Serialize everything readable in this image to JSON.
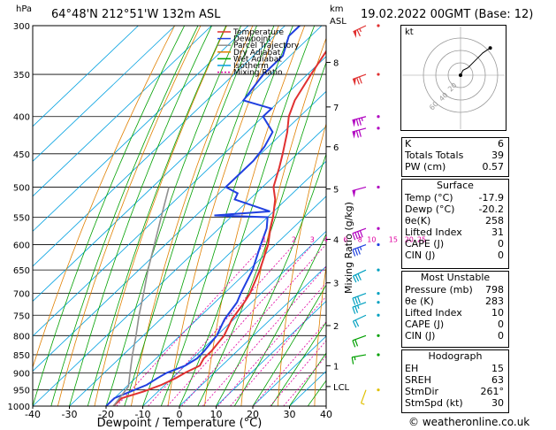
{
  "header": {
    "hpa_unit": "hPa",
    "station": "64°48'N  212°51'W  132m  ASL",
    "km_unit": "km",
    "asl_unit": "ASL",
    "valid": "19.02.2022  00GMT  (Base: 12)"
  },
  "legend": [
    {
      "label": "Temperature",
      "color": "#e03030"
    },
    {
      "label": "Dewpoint",
      "color": "#2040e0"
    },
    {
      "label": "Parcel Trajectory",
      "color": "#909090"
    },
    {
      "label": "Dry Adiabat",
      "color": "#e08000"
    },
    {
      "label": "Wet Adiabat",
      "color": "#00a000"
    },
    {
      "label": "Isotherm",
      "color": "#00a0e0"
    },
    {
      "label": "Mixing Ratio",
      "color": "#e000a0"
    }
  ],
  "chart_data": {
    "type": "skew-t",
    "title": "64°48'N 212°51'W 132m ASL",
    "xlabel": "Dewpoint / Temperature (°C)",
    "ylabel": "hPa",
    "y2label": "Mixing Ratio (g/kg)",
    "xlim": [
      -40,
      40
    ],
    "ylim": [
      1000,
      300
    ],
    "x_ticks": [
      "-40",
      "-30",
      "-20",
      "-10",
      "0",
      "10",
      "20",
      "30",
      "40"
    ],
    "pressure_ticks": [
      "300",
      "350",
      "400",
      "450",
      "500",
      "550",
      "600",
      "650",
      "700",
      "750",
      "800",
      "850",
      "900",
      "950",
      "1000"
    ],
    "km_ticks": [
      {
        "label": "8",
        "p": 337
      },
      {
        "label": "7",
        "p": 388
      },
      {
        "label": "6",
        "p": 440
      },
      {
        "label": "5",
        "p": 503
      },
      {
        "label": "4",
        "p": 590
      },
      {
        "label": "3",
        "p": 677
      },
      {
        "label": "2",
        "p": 775
      },
      {
        "label": "1",
        "p": 880
      },
      {
        "label": "LCL",
        "p": 940
      }
    ],
    "mixing_ratio_labels": [
      "1",
      "2",
      "3",
      "4",
      "6",
      "8",
      "10",
      "15",
      "20",
      "25"
    ],
    "mixing_ratio_values": [
      1,
      2,
      3,
      4,
      6,
      8,
      10,
      15,
      20,
      25
    ],
    "series": [
      {
        "name": "Temperature",
        "points": [
          [
            1000,
            -18
          ],
          [
            975,
            -18
          ],
          [
            955,
            -14
          ],
          [
            935,
            -11
          ],
          [
            915,
            -9
          ],
          [
            900,
            -8
          ],
          [
            880,
            -6
          ],
          [
            860,
            -7
          ],
          [
            840,
            -7
          ],
          [
            800,
            -8
          ],
          [
            760,
            -10.5
          ],
          [
            720,
            -12
          ],
          [
            700,
            -13
          ],
          [
            650,
            -17
          ],
          [
            600,
            -22
          ],
          [
            570,
            -26
          ],
          [
            550,
            -28.5
          ],
          [
            520,
            -33
          ],
          [
            500,
            -37
          ],
          [
            470,
            -41
          ],
          [
            450,
            -44
          ],
          [
            420,
            -49
          ],
          [
            400,
            -53
          ],
          [
            380,
            -56
          ],
          [
            350,
            -59
          ],
          [
            320,
            -62
          ],
          [
            300,
            -64
          ]
        ]
      },
      {
        "name": "Dewpoint",
        "points": [
          [
            1000,
            -20
          ],
          [
            975,
            -20
          ],
          [
            955,
            -17.5
          ],
          [
            935,
            -15
          ],
          [
            915,
            -14
          ],
          [
            900,
            -13
          ],
          [
            880,
            -10
          ],
          [
            860,
            -8.8
          ],
          [
            840,
            -9
          ],
          [
            800,
            -10
          ],
          [
            760,
            -12.5
          ],
          [
            720,
            -14
          ],
          [
            700,
            -15.5
          ],
          [
            650,
            -19
          ],
          [
            600,
            -24
          ],
          [
            570,
            -27
          ],
          [
            550,
            -30
          ],
          [
            547,
            -45
          ],
          [
            540,
            -31
          ],
          [
            520,
            -44
          ],
          [
            510,
            -45
          ],
          [
            500,
            -50
          ],
          [
            480,
            -50
          ],
          [
            460,
            -50
          ],
          [
            440,
            -51
          ],
          [
            420,
            -53
          ],
          [
            400,
            -60
          ],
          [
            390,
            -60
          ],
          [
            380,
            -70
          ],
          [
            350,
            -72
          ],
          [
            330,
            -72
          ],
          [
            310,
            -76
          ],
          [
            300,
            -76
          ]
        ]
      },
      {
        "name": "Parcel Trajectory",
        "points": [
          [
            1000,
            -18
          ],
          [
            940,
            -19.5
          ],
          [
            900,
            -23
          ],
          [
            850,
            -27.5
          ],
          [
            800,
            -32
          ],
          [
            750,
            -37
          ],
          [
            700,
            -42
          ],
          [
            650,
            -47.5
          ],
          [
            600,
            -53
          ],
          [
            550,
            -59
          ],
          [
            500,
            -65.5
          ]
        ]
      }
    ],
    "wind_barbs": [
      {
        "p": 300,
        "dir": 245,
        "speed_kt": 65
      },
      {
        "p": 350,
        "dir": 250,
        "speed_kt": 70
      },
      {
        "p": 400,
        "dir": 255,
        "speed_kt": 75
      },
      {
        "p": 415,
        "dir": 255,
        "speed_kt": 70
      },
      {
        "p": 500,
        "dir": 255,
        "speed_kt": 50
      },
      {
        "p": 570,
        "dir": 250,
        "speed_kt": 40
      },
      {
        "p": 600,
        "dir": 250,
        "speed_kt": 35
      },
      {
        "p": 650,
        "dir": 245,
        "speed_kt": 30
      },
      {
        "p": 700,
        "dir": 250,
        "speed_kt": 30
      },
      {
        "p": 720,
        "dir": 250,
        "speed_kt": 25
      },
      {
        "p": 750,
        "dir": 245,
        "speed_kt": 20
      },
      {
        "p": 800,
        "dir": 250,
        "speed_kt": 20
      },
      {
        "p": 850,
        "dir": 260,
        "speed_kt": 15
      },
      {
        "p": 950,
        "dir": 200,
        "speed_kt": 5
      }
    ],
    "footer": "19.02.2022  00GMT  (Base: 12)"
  },
  "hodograph": {
    "label": "kt",
    "ring_labels": [
      "20",
      "40",
      "60"
    ],
    "points": [
      [
        0,
        0
      ],
      [
        2,
        4
      ],
      [
        6,
        6
      ],
      [
        12,
        12
      ],
      [
        18,
        18
      ],
      [
        24,
        22
      ]
    ]
  },
  "indices": {
    "basic": [
      {
        "label": "K",
        "value": "6"
      },
      {
        "label": "Totals Totals",
        "value": "39"
      },
      {
        "label": "PW (cm)",
        "value": "0.57"
      }
    ],
    "surface": {
      "title": "Surface",
      "rows": [
        {
          "label": "Temp (°C)",
          "value": "-17.9"
        },
        {
          "label": "Dewp (°C)",
          "value": "-20.2"
        },
        {
          "label": "θe(K)",
          "value": "258"
        },
        {
          "label": "Lifted Index",
          "value": "31"
        },
        {
          "label": "CAPE (J)",
          "value": "0"
        },
        {
          "label": "CIN (J)",
          "value": "0"
        }
      ]
    },
    "most_unstable": {
      "title": "Most Unstable",
      "rows": [
        {
          "label": "Pressure (mb)",
          "value": "798"
        },
        {
          "label": "θe (K)",
          "value": "283"
        },
        {
          "label": "Lifted Index",
          "value": "10"
        },
        {
          "label": "CAPE (J)",
          "value": "0"
        },
        {
          "label": "CIN (J)",
          "value": "0"
        }
      ]
    },
    "hodograph_table": {
      "title": "Hodograph",
      "rows": [
        {
          "label": "EH",
          "value": "15"
        },
        {
          "label": "SREH",
          "value": "63"
        },
        {
          "label": "StmDir",
          "value": "261°"
        },
        {
          "label": "StmSpd (kt)",
          "value": "30"
        }
      ]
    }
  },
  "credit": "© weatheronline.co.uk"
}
